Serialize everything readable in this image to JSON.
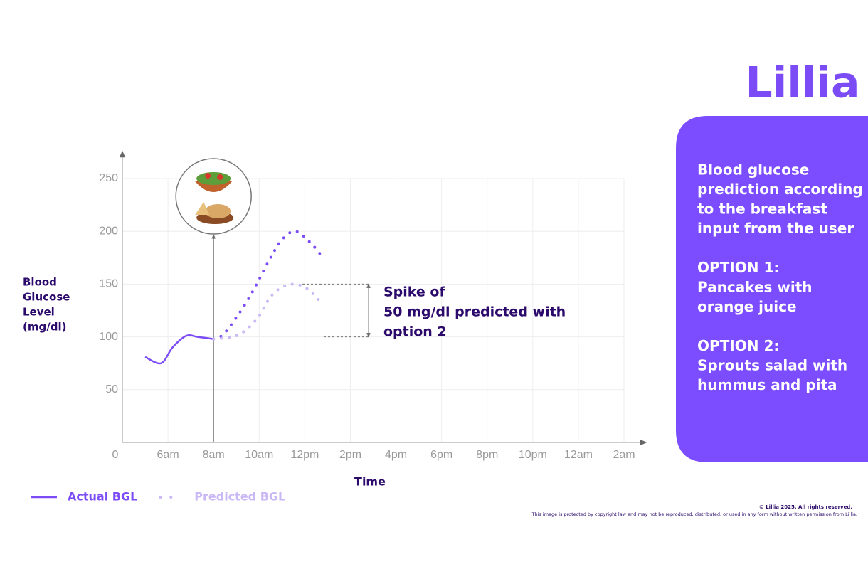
{
  "brand": "Lillia",
  "chart_data": {
    "type": "line",
    "y_label": [
      "Blood",
      "Glucose",
      "Level",
      "(mg/dl)"
    ],
    "x_label": "Time",
    "xlim": [
      4,
      26
    ],
    "xticks": [
      {
        "value": 6,
        "label": "6am"
      },
      {
        "value": 8,
        "label": "8am"
      },
      {
        "value": 10,
        "label": "10am"
      },
      {
        "value": 12,
        "label": "12pm"
      },
      {
        "value": 14,
        "label": "2pm"
      },
      {
        "value": 16,
        "label": "4pm"
      },
      {
        "value": 18,
        "label": "6pm"
      },
      {
        "value": 20,
        "label": "8pm"
      },
      {
        "value": 22,
        "label": "10pm"
      },
      {
        "value": 24,
        "label": "12am"
      },
      {
        "value": 26,
        "label": "2am"
      }
    ],
    "ylim": [
      0,
      250
    ],
    "yticks": [
      0,
      50,
      100,
      150,
      200,
      250
    ],
    "grid": true,
    "meal_time": 8,
    "series": [
      {
        "name": "Actual BGL",
        "color": "#7b4cf5",
        "style": "solid",
        "x": [
          5,
          5.7,
          6.2,
          6.8,
          7.3,
          8
        ],
        "values": [
          81,
          75,
          90,
          101,
          100,
          98
        ]
      },
      {
        "color": "#7b4cf5",
        "style": "dotted",
        "x": [
          8,
          8.5,
          9.5,
          10.5,
          11,
          11.6,
          12.3,
          12.8
        ],
        "values": [
          98,
          104,
          135,
          175,
          192,
          200,
          188,
          175
        ]
      },
      {
        "name": "Predicted BGL",
        "color": "#c9b8f5",
        "style": "dotted",
        "x": [
          8,
          8.5,
          9,
          9.5,
          10,
          10.5,
          11,
          11.5,
          12,
          12.4,
          12.8
        ],
        "values": [
          98,
          99,
          101,
          108,
          120,
          138,
          147,
          150,
          147,
          140,
          130
        ]
      }
    ],
    "annotation": {
      "lines": [
        "Spike of",
        "50 mg/dl predicted with",
        "option 2"
      ],
      "from": 100,
      "to": 150
    }
  },
  "panel": {
    "paragraphs": [
      [
        "Blood glucose",
        "prediction according",
        "to the breakfast",
        "input from the user"
      ],
      [
        "OPTION 1:",
        "Pancakes with",
        "orange juice"
      ],
      [
        "OPTION 2:",
        "Sprouts salad with",
        "hummus and pita"
      ]
    ]
  },
  "footer": [
    "© Lillia 2025. All rights reserved.",
    "This image is protected by copyright law and may not be reproduced, distributed, or used in any form without written permission from Lillia."
  ]
}
